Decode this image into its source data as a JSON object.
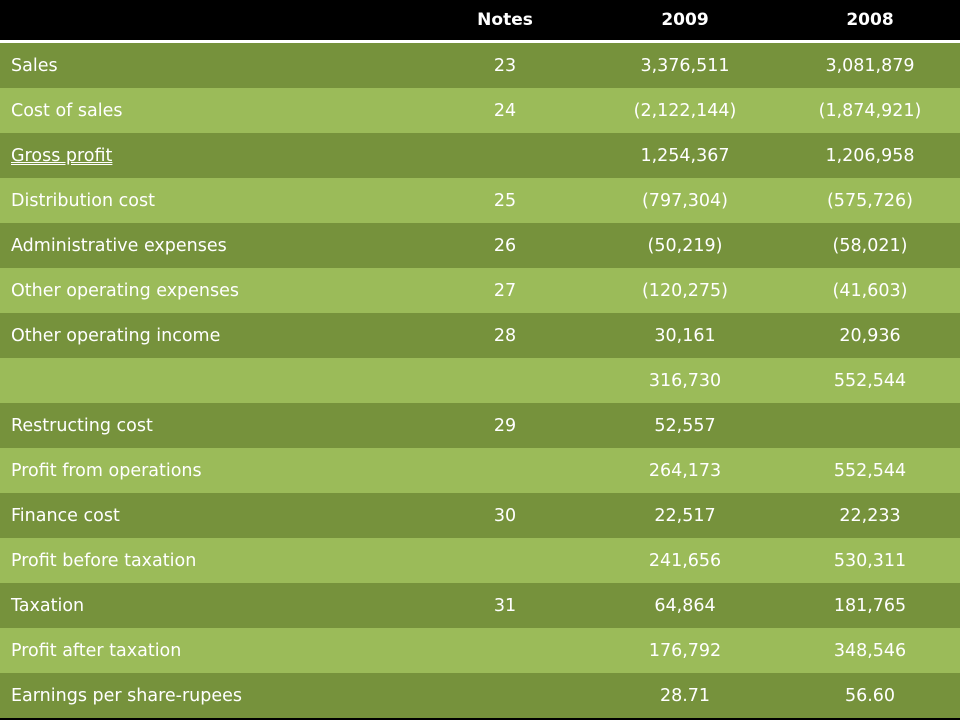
{
  "header": {
    "label": "",
    "notes": "Notes",
    "y2009": "2009",
    "y2008": "2008"
  },
  "colors": {
    "dark": "#76923c",
    "light": "#9bbb59",
    "header_bg": "#000000"
  },
  "rows": [
    {
      "label": "Sales",
      "notes": "23",
      "y2009": "3,376,511",
      "y2008": "3,081,879"
    },
    {
      "label": "Cost of sales",
      "notes": "24",
      "y2009": "(2,122,144)",
      "y2008": "(1,874,921)"
    },
    {
      "label": "Gross profit",
      "notes": "",
      "y2009": "1,254,367",
      "y2008": "1,206,958"
    },
    {
      "label": "Distribution cost",
      "notes": "25",
      "y2009": "(797,304)",
      "y2008": "(575,726)"
    },
    {
      "label": "Administrative expenses",
      "notes": "26",
      "y2009": "(50,219)",
      "y2008": "(58,021)"
    },
    {
      "label": "Other operating expenses",
      "notes": "27",
      "y2009": "(120,275)",
      "y2008": "(41,603)"
    },
    {
      "label": "Other operating income",
      "notes": "28",
      "y2009": "30,161",
      "y2008": "20,936"
    },
    {
      "label": "",
      "notes": "",
      "y2009": "316,730",
      "y2008": "552,544"
    },
    {
      "label": "Restructing cost",
      "notes": "29",
      "y2009": "52,557",
      "y2008": ""
    },
    {
      "label": "Profit from operations",
      "notes": "",
      "y2009": "264,173",
      "y2008": "552,544"
    },
    {
      "label": "Finance cost",
      "notes": "30",
      "y2009": "22,517",
      "y2008": "22,233"
    },
    {
      "label": "Profit before taxation",
      "notes": "",
      "y2009": "241,656",
      "y2008": "530,311"
    },
    {
      "label": "Taxation",
      "notes": "31",
      "y2009": "64,864",
      "y2008": "181,765"
    },
    {
      "label": "Profit after taxation",
      "notes": "",
      "y2009": "176,792",
      "y2008": "348,546"
    },
    {
      "label": "Earnings per share-rupees",
      "notes": "",
      "y2009": "28.71",
      "y2008": "56.60"
    }
  ]
}
